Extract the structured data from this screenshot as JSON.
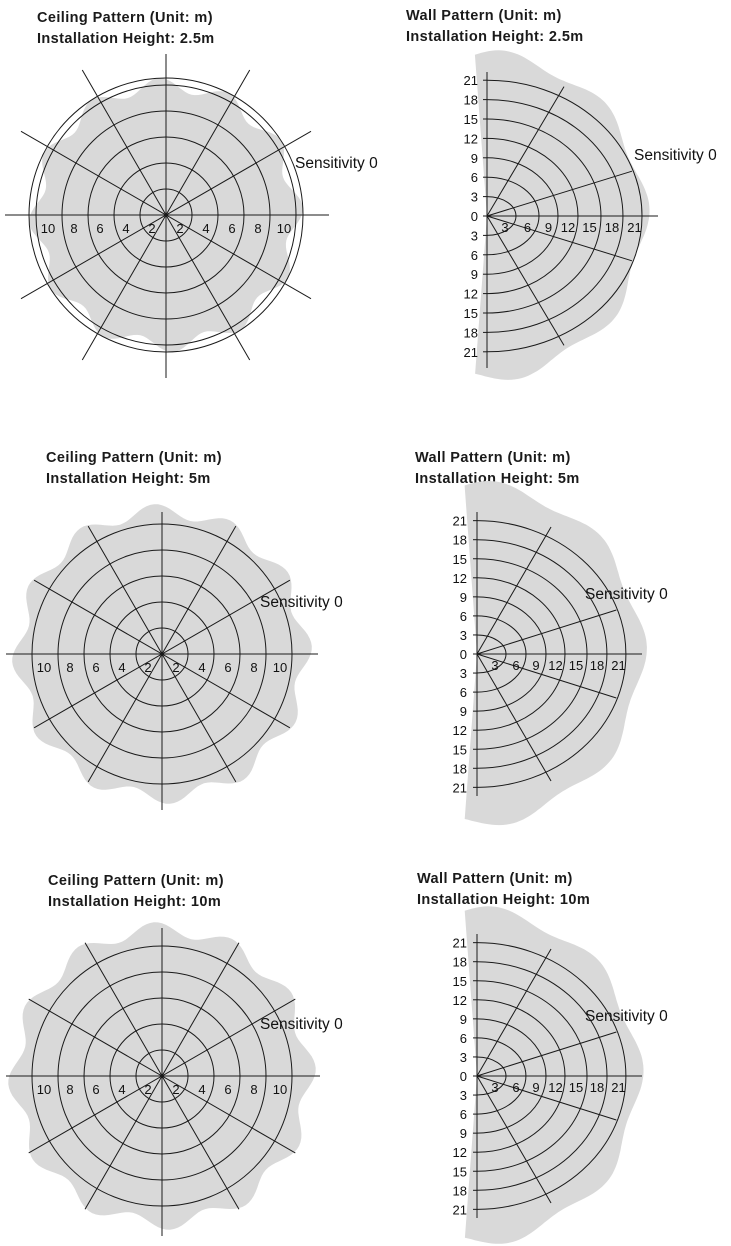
{
  "panels": [
    {
      "id": "ceiling-2-5",
      "type": "ceiling",
      "title_line1": "Ceiling Pattern (Unit: m)",
      "title_line2": "Installation Height: 2.5m",
      "sensitivity_label": "Sensitivity 0",
      "ring_values": [
        2,
        4,
        6,
        8,
        10
      ],
      "axis_labels": [
        "10",
        "8",
        "6",
        "4",
        "2",
        "2",
        "4",
        "6",
        "8",
        "10"
      ],
      "coverage_radius_m": 10
    },
    {
      "id": "wall-2-5",
      "type": "wall",
      "title_line1": "Wall Pattern (Unit: m)",
      "title_line2": "Installation Height: 2.5m",
      "sensitivity_label": "Sensitivity 0",
      "ring_values": [
        3,
        6,
        9,
        12,
        15,
        18,
        21
      ],
      "axis_labels": [
        "3",
        "6",
        "9",
        "12",
        "15",
        "18",
        "21"
      ],
      "vertical_labels": [
        "21",
        "18",
        "15",
        "12",
        "9",
        "6",
        "3",
        "0",
        "3",
        "6",
        "9",
        "12",
        "15",
        "18",
        "21"
      ],
      "coverage_radius_m": 22
    },
    {
      "id": "ceiling-5",
      "type": "ceiling",
      "title_line1": "Ceiling Pattern (Unit: m)",
      "title_line2": "Installation Height: 5m",
      "sensitivity_label": "Sensitivity 0",
      "ring_values": [
        2,
        4,
        6,
        8,
        10
      ],
      "axis_labels": [
        "10",
        "8",
        "6",
        "4",
        "2",
        "2",
        "4",
        "6",
        "8",
        "10"
      ],
      "coverage_radius_m": 11
    },
    {
      "id": "wall-5",
      "type": "wall",
      "title_line1": "Wall Pattern (Unit: m)",
      "title_line2": "Installation Height: 5m",
      "sensitivity_label": "Sensitivity 0",
      "ring_values": [
        3,
        6,
        9,
        12,
        15,
        18,
        21
      ],
      "axis_labels": [
        "3",
        "6",
        "9",
        "12",
        "15",
        "18",
        "21"
      ],
      "vertical_labels": [
        "21",
        "18",
        "15",
        "12",
        "9",
        "6",
        "3",
        "0",
        "3",
        "6",
        "9",
        "12",
        "15",
        "18",
        "21"
      ],
      "coverage_radius_m": 24
    },
    {
      "id": "ceiling-10",
      "type": "ceiling",
      "title_line1": "Ceiling Pattern (Unit: m)",
      "title_line2": "Installation Height: 10m",
      "sensitivity_label": "Sensitivity 0",
      "ring_values": [
        2,
        4,
        6,
        8,
        10
      ],
      "axis_labels": [
        "10",
        "8",
        "6",
        "4",
        "2",
        "2",
        "4",
        "6",
        "8",
        "10"
      ],
      "coverage_radius_m": 11.3
    },
    {
      "id": "wall-10",
      "type": "wall",
      "title_line1": "Wall Pattern (Unit: m)",
      "title_line2": "Installation Height: 10m",
      "sensitivity_label": "Sensitivity 0",
      "ring_values": [
        3,
        6,
        9,
        12,
        15,
        18,
        21
      ],
      "axis_labels": [
        "3",
        "6",
        "9",
        "12",
        "15",
        "18",
        "21"
      ],
      "vertical_labels": [
        "21",
        "18",
        "15",
        "12",
        "9",
        "6",
        "3",
        "0",
        "3",
        "6",
        "9",
        "12",
        "15",
        "18",
        "21"
      ],
      "coverage_radius_m": 23.5
    }
  ],
  "colors": {
    "line": "#1a1a1a",
    "coverage": "#d9d9d9",
    "text": "#111111"
  }
}
